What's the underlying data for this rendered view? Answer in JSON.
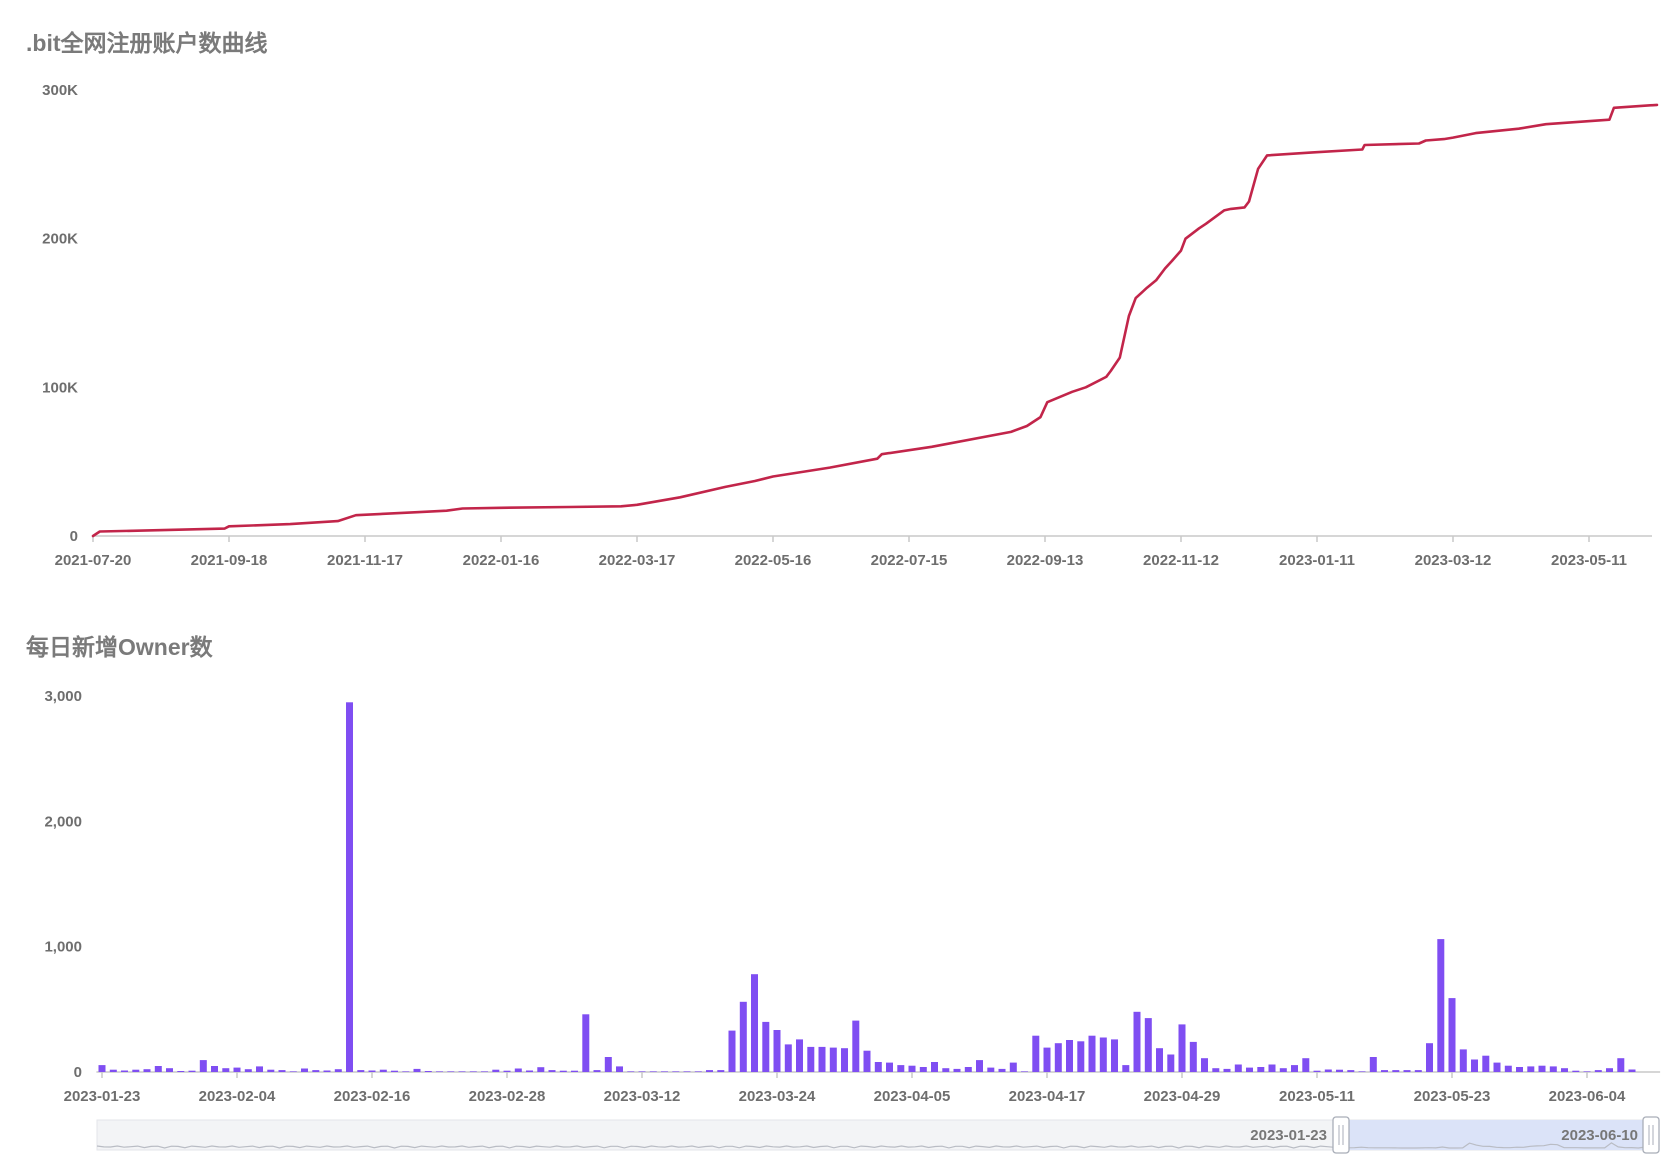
{
  "charts": {
    "top_title": ".bit全网注册账户数曲线",
    "bottom_title": "每日新增Owner数"
  },
  "chart_data": [
    {
      "type": "line",
      "title": ".bit全网注册账户数曲线",
      "color": "#c2254a",
      "ylim": [
        0,
        300000
      ],
      "yticks": [
        "0",
        "100K",
        "200K",
        "300K"
      ],
      "xticks": [
        "2021-07-20",
        "2021-09-18",
        "2021-11-17",
        "2022-01-16",
        "2022-03-17",
        "2022-05-16",
        "2022-07-15",
        "2022-09-13",
        "2022-11-12",
        "2023-01-11",
        "2023-03-12",
        "2023-05-11"
      ],
      "series": [
        {
          "x": [
            "2021-07-20",
            "2021-07-23",
            "2021-08-20",
            "2021-09-16",
            "2021-09-18",
            "2021-10-15",
            "2021-11-05",
            "2021-11-13",
            "2021-12-10",
            "2021-12-23",
            "2021-12-30",
            "2022-01-16",
            "2022-02-15",
            "2022-03-10",
            "2022-03-17",
            "2022-04-05",
            "2022-04-25",
            "2022-05-08",
            "2022-05-16",
            "2022-06-10",
            "2022-07-01",
            "2022-07-03",
            "2022-07-25",
            "2022-08-29",
            "2022-09-05",
            "2022-09-11",
            "2022-09-14",
            "2022-09-25",
            "2022-10-01",
            "2022-10-10",
            "2022-10-12",
            "2022-10-16",
            "2022-10-20",
            "2022-10-23",
            "2022-10-28",
            "2022-11-01",
            "2022-11-05",
            "2022-11-08",
            "2022-11-12",
            "2022-11-14",
            "2022-11-20",
            "2022-11-23",
            "2022-12-01",
            "2022-12-04",
            "2022-12-10",
            "2022-12-12",
            "2022-12-16",
            "2022-12-20",
            "2023-01-09",
            "2023-01-31",
            "2023-02-01",
            "2023-02-25",
            "2023-02-28",
            "2023-03-08",
            "2023-03-12",
            "2023-03-22",
            "2023-04-10",
            "2023-04-22",
            "2023-05-20",
            "2023-05-22",
            "2023-06-10"
          ],
          "y": [
            0,
            3000,
            4000,
            5000,
            6500,
            8000,
            10000,
            14000,
            16000,
            17000,
            18500,
            19000,
            19500,
            20000,
            21000,
            26000,
            33000,
            37000,
            40000,
            46000,
            52000,
            55000,
            60000,
            70000,
            74000,
            80000,
            90000,
            97000,
            100000,
            107000,
            111000,
            120000,
            148000,
            160000,
            167000,
            172000,
            180000,
            185000,
            192000,
            200000,
            207000,
            210000,
            219000,
            220000,
            221000,
            225000,
            247000,
            256000,
            258000,
            260000,
            263000,
            264000,
            266000,
            267000,
            268000,
            271000,
            274000,
            277000,
            280000,
            288000,
            290000
          ]
        }
      ]
    },
    {
      "type": "bar",
      "title": "每日新增Owner数",
      "color": "#7f4ef2",
      "ylim": [
        0,
        3000
      ],
      "yticks": [
        "0",
        "1,000",
        "2,000",
        "3,000"
      ],
      "xticks": [
        "2023-01-23",
        "2023-02-04",
        "2023-02-16",
        "2023-02-28",
        "2023-03-12",
        "2023-03-24",
        "2023-04-05",
        "2023-04-17",
        "2023-04-29",
        "2023-05-11",
        "2023-05-23",
        "2023-06-04"
      ],
      "start_date": "2023-01-23",
      "end_date": "2023-06-10",
      "values": [
        55,
        18,
        12,
        18,
        22,
        48,
        30,
        8,
        10,
        95,
        48,
        30,
        35,
        22,
        45,
        18,
        15,
        5,
        28,
        15,
        12,
        22,
        2950,
        15,
        12,
        18,
        10,
        5,
        25,
        8,
        5,
        5,
        5,
        5,
        5,
        18,
        10,
        28,
        12,
        38,
        15,
        10,
        10,
        460,
        15,
        120,
        45,
        5,
        5,
        5,
        5,
        5,
        5,
        5,
        15,
        15,
        330,
        560,
        780,
        400,
        335,
        220,
        260,
        200,
        200,
        195,
        190,
        410,
        170,
        80,
        75,
        55,
        50,
        40,
        80,
        30,
        25,
        40,
        95,
        35,
        25,
        75,
        5,
        290,
        195,
        230,
        255,
        245,
        290,
        275,
        260,
        55,
        480,
        430,
        190,
        140,
        380,
        240,
        110,
        30,
        25,
        60,
        35,
        40,
        60,
        30,
        55,
        110,
        10,
        20,
        18,
        15,
        5,
        120,
        15,
        15,
        15,
        15,
        230,
        1060,
        590,
        180,
        100,
        130,
        75,
        50,
        40,
        45,
        50,
        45,
        30,
        10,
        5,
        15,
        30,
        110,
        20
      ],
      "slider": {
        "start_label": "2023-01-23",
        "end_label": "2023-06-10"
      }
    }
  ]
}
